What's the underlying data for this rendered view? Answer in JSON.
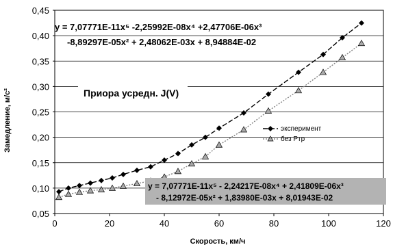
{
  "chart_data": {
    "type": "line",
    "xlabel": "Скорость, км/ч",
    "ylabel": "Замедление, м/с²",
    "xlim": [
      0,
      120
    ],
    "ylim": [
      0.05,
      0.45
    ],
    "x_ticks": [
      "0",
      "20",
      "40",
      "60",
      "80",
      "100",
      "120"
    ],
    "y_ticks": [
      "0,05",
      "0,10",
      "0,15",
      "0,20",
      "0,25",
      "0,30",
      "0,35",
      "0,40",
      "0,45"
    ],
    "grid": "horizontal",
    "legend_position": "right",
    "annotation": "Приора усредн. J(V)",
    "series": [
      {
        "name": "эксперимент",
        "color": "#000000",
        "marker": "diamond",
        "x": [
          1.5,
          5,
          9,
          13,
          17,
          21,
          25,
          30,
          35,
          40,
          45,
          50,
          55,
          60,
          69,
          78,
          89,
          98,
          105,
          112
        ],
        "y": [
          0.093,
          0.1,
          0.105,
          0.11,
          0.115,
          0.12,
          0.127,
          0.135,
          0.142,
          0.155,
          0.168,
          0.185,
          0.2,
          0.218,
          0.248,
          0.285,
          0.328,
          0.363,
          0.396,
          0.425
        ]
      },
      {
        "name": "без Ртр",
        "color": "#808080",
        "marker": "triangle",
        "x": [
          1.5,
          5,
          9,
          13,
          17,
          21,
          25,
          30,
          35,
          40,
          45,
          50,
          55,
          60,
          69,
          78,
          89,
          98,
          105,
          112
        ],
        "y": [
          0.082,
          0.088,
          0.092,
          0.095,
          0.097,
          0.1,
          0.104,
          0.109,
          0.114,
          0.122,
          0.133,
          0.148,
          0.162,
          0.185,
          0.215,
          0.252,
          0.292,
          0.328,
          0.357,
          0.385
        ]
      }
    ],
    "equations": {
      "top": {
        "line1": "y = 7,07771E-11x⁵ -2,25992E-08x⁴ +2,47706E-06x³",
        "line2": "-8,89297E-05x² + 2,48062E-03x + 8,94884E-02"
      },
      "bottom": {
        "line1": "y = 7,07771E-11x⁵ - 2,24217E-08x⁴ + 2,41809E-06x³",
        "line2": "- 8,12972E-05x² + 1,83980E-03x + 8,01943E-02"
      }
    }
  }
}
